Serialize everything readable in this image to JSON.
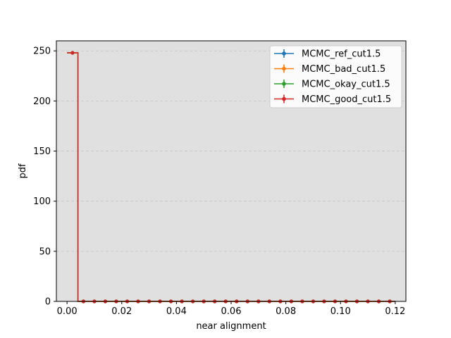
{
  "chart_data": {
    "type": "line",
    "title": "",
    "xlabel": "near alignment",
    "ylabel": "pdf",
    "xlim": [
      -0.0039,
      0.1239
    ],
    "ylim": [
      0,
      260
    ],
    "xticks": [
      0.0,
      0.02,
      0.04,
      0.06,
      0.08,
      0.1,
      0.12
    ],
    "xtick_labels": [
      "0.00",
      "0.02",
      "0.04",
      "0.06",
      "0.08",
      "0.10",
      "0.12"
    ],
    "yticks": [
      0,
      50,
      100,
      150,
      200,
      250
    ],
    "ytick_labels": [
      "0",
      "50",
      "100",
      "150",
      "200",
      "250"
    ],
    "grid": {
      "axis": "y",
      "style": "dashed"
    },
    "legend": {
      "position": "top-right"
    },
    "background": "#e0e0e0",
    "x": [
      0.002,
      0.006,
      0.01,
      0.014,
      0.018,
      0.022,
      0.026,
      0.03,
      0.034,
      0.038,
      0.042,
      0.046,
      0.05,
      0.054,
      0.058,
      0.062,
      0.066,
      0.07,
      0.074,
      0.078,
      0.082,
      0.086,
      0.09,
      0.094,
      0.098,
      0.102,
      0.106,
      0.11,
      0.114,
      0.118
    ],
    "bin_width": 0.004,
    "series": [
      {
        "name": "MCMC_ref_cut1.5",
        "color": "#1f77b4",
        "values": [
          248,
          0,
          0,
          0,
          0,
          0,
          0,
          0,
          0,
          0,
          0,
          0,
          0,
          0,
          0,
          0,
          0,
          0,
          0,
          0,
          0,
          0,
          0,
          0,
          0,
          0,
          0,
          0,
          0,
          0
        ]
      },
      {
        "name": "MCMC_bad_cut1.5",
        "color": "#ff7f0e",
        "values": [
          248,
          0,
          0,
          0,
          0,
          0,
          0,
          0,
          0,
          0,
          0,
          0,
          0,
          0,
          0,
          0,
          0,
          0,
          0,
          0,
          0,
          0,
          0,
          0,
          0,
          0,
          0,
          0,
          0,
          0
        ]
      },
      {
        "name": "MCMC_okay_cut1.5",
        "color": "#2ca02c",
        "values": [
          248,
          0,
          0,
          0,
          0,
          0,
          0,
          0,
          0,
          0,
          0,
          0,
          0,
          0,
          0,
          0,
          0,
          0,
          0,
          0,
          0,
          0,
          0,
          0,
          0,
          0,
          0,
          0,
          0,
          0
        ]
      },
      {
        "name": "MCMC_good_cut1.5",
        "color": "#d62728",
        "values": [
          248,
          0,
          0,
          0,
          0,
          0,
          0,
          0,
          0,
          0,
          0,
          0,
          0,
          0,
          0,
          0,
          0,
          0,
          0,
          0,
          0,
          0,
          0,
          0,
          0,
          0,
          0,
          0,
          0,
          0
        ]
      }
    ]
  }
}
